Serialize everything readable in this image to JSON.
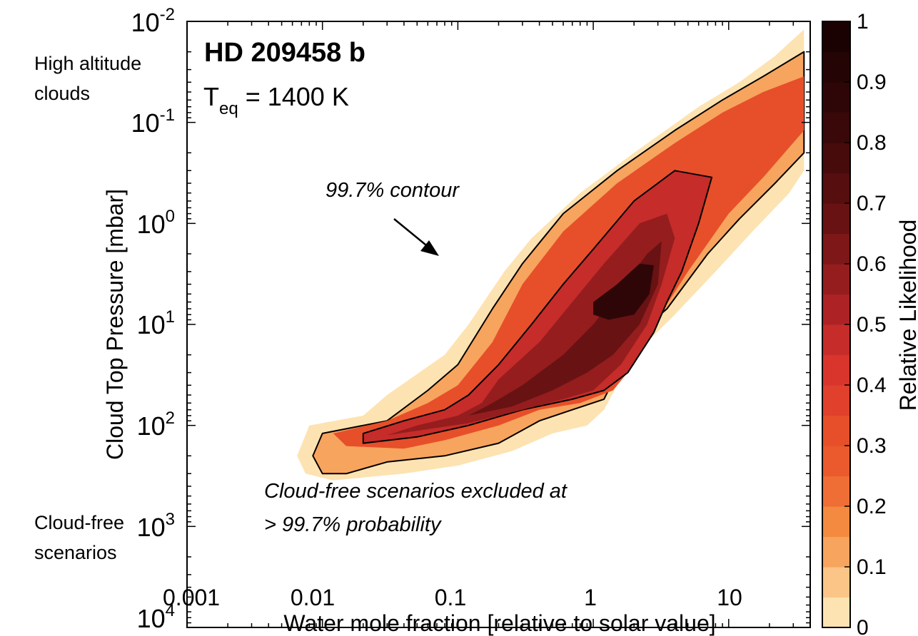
{
  "chart_data": {
    "type": "heatmap",
    "title": "HD 209458 b",
    "subtitle": {
      "main": "T",
      "sub": "eq",
      "rest": " = 1400 K"
    },
    "xlabel": "Water mole fraction [relative to solar value]",
    "ylabel": "Cloud Top Pressure [mbar]",
    "x_scale": "log",
    "y_scale": "log",
    "y_reversed": true,
    "xlim": [
      0.001,
      40
    ],
    "ylim": [
      0.01,
      10000
    ],
    "x_ticks": [
      {
        "value": 0.001,
        "label": "0.001"
      },
      {
        "value": 0.01,
        "label": "0.01"
      },
      {
        "value": 0.1,
        "label": "0.1"
      },
      {
        "value": 1,
        "label": "1"
      },
      {
        "value": 10,
        "label": "10"
      }
    ],
    "y_ticks": [
      {
        "value": 0.01,
        "base": "10",
        "exp": "-2"
      },
      {
        "value": 0.1,
        "base": "10",
        "exp": "-1"
      },
      {
        "value": 1,
        "base": "10",
        "exp": "0"
      },
      {
        "value": 10,
        "base": "10",
        "exp": "1"
      },
      {
        "value": 100,
        "base": "10",
        "exp": "2"
      },
      {
        "value": 1000,
        "base": "10",
        "exp": "3"
      },
      {
        "value": 10000,
        "base": "10",
        "exp": "4"
      }
    ],
    "grid": false,
    "colorbar": {
      "label": "Relative Likelihood",
      "range": [
        0,
        1
      ],
      "tick_labels": [
        "0",
        "0.1",
        "0.2",
        "0.3",
        "0.4",
        "0.5",
        "0.6",
        "0.7",
        "0.8",
        "0.9",
        "1"
      ],
      "level_colors": [
        "#fde3b2",
        "#fbc587",
        "#f7a45e",
        "#f38a3f",
        "#ef6e35",
        "#ea5a2c",
        "#e64f2a",
        "#e0402c",
        "#d9352d",
        "#c62c2a",
        "#ad2325",
        "#951d1e",
        "#7d1718",
        "#681213",
        "#560e0f",
        "#470b0c",
        "#3a0809",
        "#2f0607",
        "#240404",
        "#1a0203"
      ]
    },
    "contour_levels": [
      {
        "level": 0.0,
        "color": "#fde3b2",
        "outline": false,
        "polygon": [
          [
            0.0075,
            300
          ],
          [
            0.0065,
            200
          ],
          [
            0.008,
            100
          ],
          [
            0.02,
            80
          ],
          [
            0.03,
            50
          ],
          [
            0.08,
            20
          ],
          [
            0.12,
            10
          ],
          [
            0.22,
            3
          ],
          [
            0.35,
            1.4
          ],
          [
            0.8,
            0.5
          ],
          [
            2,
            0.2
          ],
          [
            6,
            0.07
          ],
          [
            12,
            0.04
          ],
          [
            22,
            0.022
          ],
          [
            36,
            0.012
          ],
          [
            36,
            0.3
          ],
          [
            28,
            0.5
          ],
          [
            15,
            1.2
          ],
          [
            8,
            3
          ],
          [
            4,
            8
          ],
          [
            2.5,
            15
          ],
          [
            1.5,
            40
          ],
          [
            1.2,
            70
          ],
          [
            0.9,
            100
          ],
          [
            0.5,
            120
          ],
          [
            0.25,
            180
          ],
          [
            0.1,
            250
          ],
          [
            0.04,
            300
          ],
          [
            0.012,
            350
          ]
        ]
      },
      {
        "level": 0.03,
        "color": "#f7a45e",
        "outline": true,
        "polygon": [
          [
            0.01,
            300
          ],
          [
            0.0085,
            200
          ],
          [
            0.01,
            120
          ],
          [
            0.03,
            90
          ],
          [
            0.06,
            45
          ],
          [
            0.1,
            25
          ],
          [
            0.18,
            7
          ],
          [
            0.3,
            2.5
          ],
          [
            0.6,
            0.8
          ],
          [
            1.5,
            0.3
          ],
          [
            4,
            0.12
          ],
          [
            9,
            0.06
          ],
          [
            18,
            0.035
          ],
          [
            36,
            0.02
          ],
          [
            36,
            0.2
          ],
          [
            22,
            0.4
          ],
          [
            12,
            0.9
          ],
          [
            7,
            2
          ],
          [
            3.5,
            7
          ],
          [
            2.2,
            12
          ],
          [
            1.5,
            30
          ],
          [
            1.2,
            55
          ],
          [
            0.7,
            70
          ],
          [
            0.4,
            90
          ],
          [
            0.2,
            150
          ],
          [
            0.08,
            200
          ],
          [
            0.03,
            230
          ],
          [
            0.015,
            300
          ]
        ]
      },
      {
        "level": 0.2,
        "color": "#e64f2a",
        "outline": false,
        "polygon": [
          [
            0.015,
            160
          ],
          [
            0.012,
            120
          ],
          [
            0.03,
            90
          ],
          [
            0.06,
            60
          ],
          [
            0.1,
            40
          ],
          [
            0.18,
            15
          ],
          [
            0.3,
            4
          ],
          [
            0.6,
            1.2
          ],
          [
            1.5,
            0.4
          ],
          [
            4,
            0.16
          ],
          [
            9,
            0.08
          ],
          [
            18,
            0.05
          ],
          [
            36,
            0.035
          ],
          [
            36,
            0.12
          ],
          [
            18,
            0.35
          ],
          [
            10,
            0.8
          ],
          [
            5,
            3
          ],
          [
            2.8,
            10
          ],
          [
            2,
            25
          ],
          [
            1.4,
            45
          ],
          [
            0.8,
            60
          ],
          [
            0.4,
            70
          ],
          [
            0.2,
            100
          ],
          [
            0.08,
            140
          ],
          [
            0.04,
            170
          ]
        ]
      },
      {
        "level": 0.5,
        "color": "#c62c2a",
        "outline": true,
        "polygon": [
          [
            0.02,
            150
          ],
          [
            0.02,
            120
          ],
          [
            0.04,
            90
          ],
          [
            0.08,
            70
          ],
          [
            0.12,
            50
          ],
          [
            0.2,
            25
          ],
          [
            0.35,
            10
          ],
          [
            0.6,
            4
          ],
          [
            1,
            1.8
          ],
          [
            2,
            0.6
          ],
          [
            4,
            0.3
          ],
          [
            7.5,
            0.35
          ],
          [
            6,
            1
          ],
          [
            4.5,
            3
          ],
          [
            3.5,
            6
          ],
          [
            2.8,
            12
          ],
          [
            1.8,
            30
          ],
          [
            1.2,
            45
          ],
          [
            0.7,
            55
          ],
          [
            0.3,
            70
          ],
          [
            0.12,
            100
          ],
          [
            0.05,
            130
          ]
        ]
      },
      {
        "level": 0.65,
        "color": "#951d1e",
        "outline": false,
        "polygon": [
          [
            0.03,
            125
          ],
          [
            0.05,
            100
          ],
          [
            0.1,
            80
          ],
          [
            0.15,
            60
          ],
          [
            0.2,
            35
          ],
          [
            0.4,
            15
          ],
          [
            0.7,
            6
          ],
          [
            1.2,
            2.5
          ],
          [
            2.2,
            1
          ],
          [
            3.5,
            0.8
          ],
          [
            4,
            1.4
          ],
          [
            3.2,
            4
          ],
          [
            2.5,
            10
          ],
          [
            1.6,
            25
          ],
          [
            1,
            45
          ],
          [
            0.6,
            55
          ],
          [
            0.3,
            70
          ],
          [
            0.12,
            95
          ]
        ]
      },
      {
        "level": 0.8,
        "color": "#681213",
        "outline": false,
        "polygon": [
          [
            0.07,
            90
          ],
          [
            0.12,
            80
          ],
          [
            0.18,
            60
          ],
          [
            0.3,
            40
          ],
          [
            0.6,
            20
          ],
          [
            1,
            10
          ],
          [
            1.5,
            5
          ],
          [
            2.5,
            2
          ],
          [
            3.2,
            1.5
          ],
          [
            3,
            4
          ],
          [
            2.2,
            10
          ],
          [
            1.4,
            20
          ],
          [
            0.9,
            30
          ],
          [
            0.5,
            45
          ],
          [
            0.25,
            65
          ],
          [
            0.12,
            80
          ]
        ]
      },
      {
        "level": 0.95,
        "color": "#2f0607",
        "outline": false,
        "polygon": [
          [
            1,
            6
          ],
          [
            1.5,
            4
          ],
          [
            2.2,
            2.5
          ],
          [
            2.8,
            2.6
          ],
          [
            2.6,
            5
          ],
          [
            2,
            8
          ],
          [
            1.3,
            9
          ],
          [
            1,
            8
          ]
        ]
      }
    ],
    "annotations": [
      {
        "text": "99.7% contour",
        "style": "italic",
        "arrow": true
      },
      {
        "text": "Cloud-free scenarios excluded at",
        "style": "italic"
      },
      {
        "text": "> 99.7% probability",
        "style": "italic"
      }
    ],
    "side_labels": {
      "top": [
        "High altitude",
        "clouds"
      ],
      "bottom": [
        "Cloud-free",
        "scenarios"
      ]
    }
  }
}
